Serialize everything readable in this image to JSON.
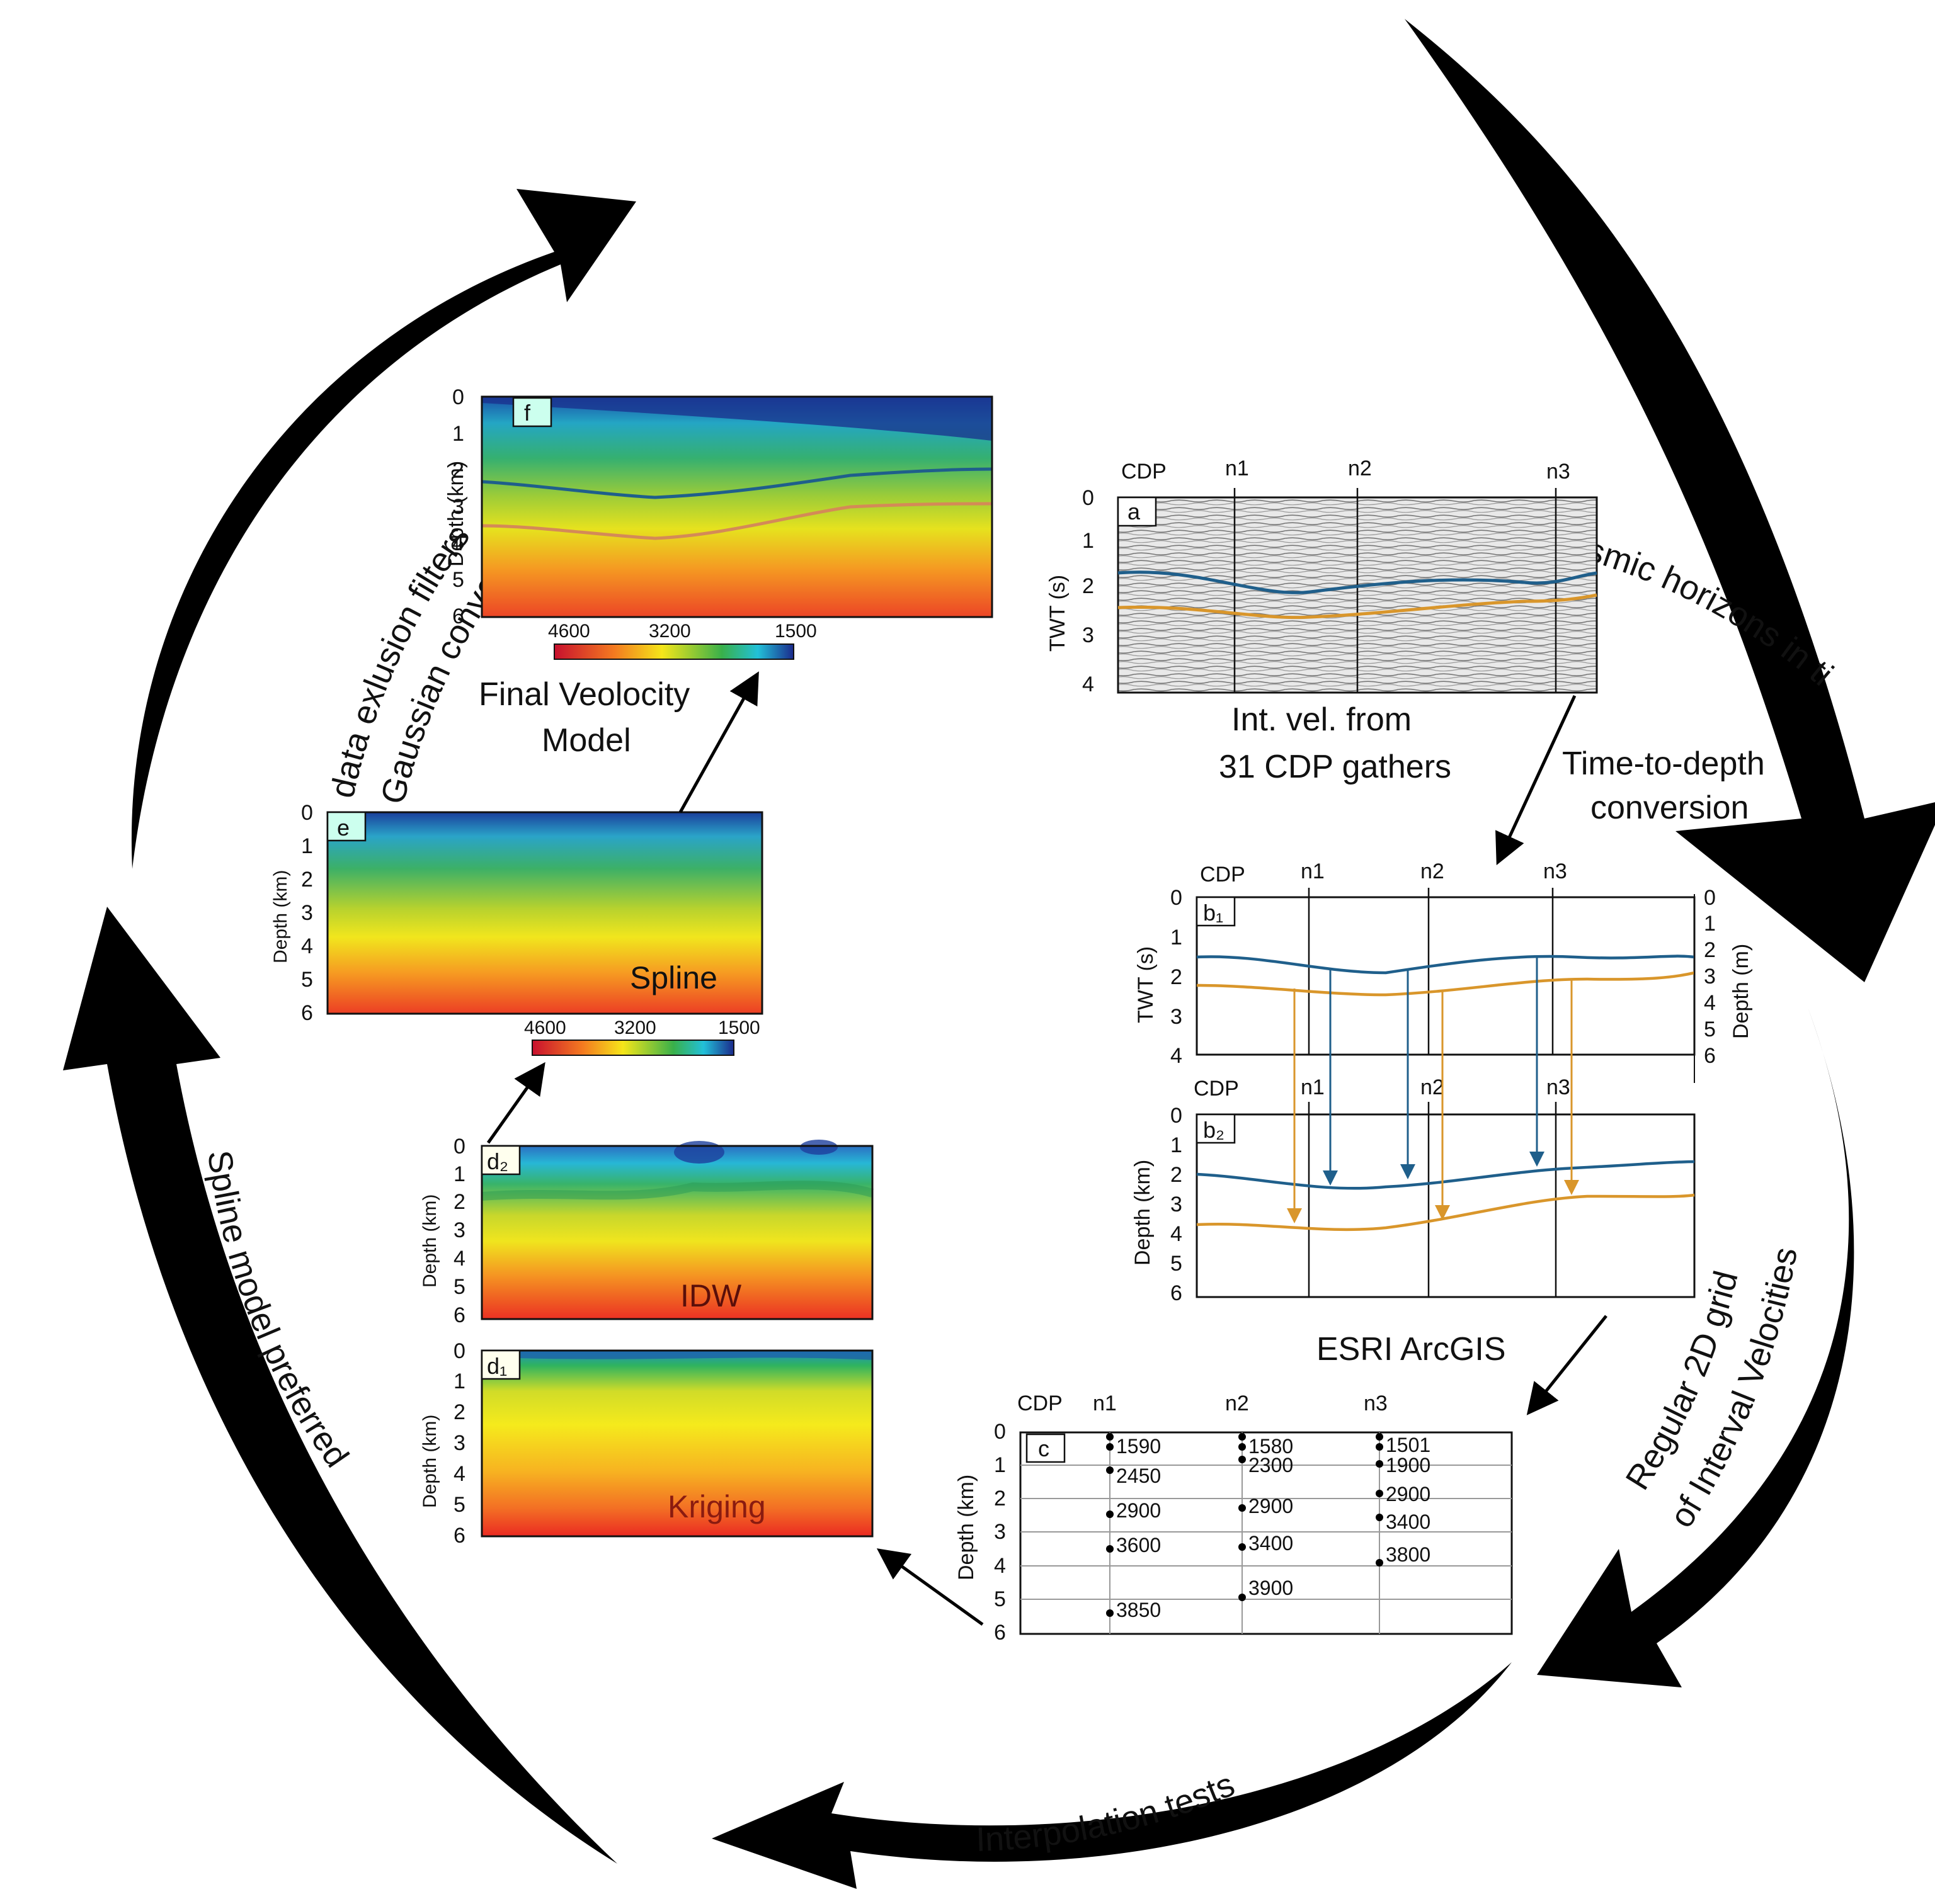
{
  "cycle": {
    "seismic_horizons": "Seismic horizons in time",
    "regular_grid_line1": "Regular 2D grid",
    "regular_grid_line2": "of Interval Velocities",
    "interpolation_tests": "Interpolation tests",
    "spline_preferred": "Spline model preferred",
    "gaussian_line1": "Gaussian convolution",
    "gaussian_line2": "data exlusion filters"
  },
  "steps": {
    "int_vel_line1": "Int. vel. from",
    "int_vel_line2": "31 CDP gathers",
    "time_depth_line1": "Time-to-depth",
    "time_depth_line2": "conversion",
    "arcgis": "ESRI ArcGIS",
    "final_line1": "Final Veolocity",
    "final_line2": "Model"
  },
  "common": {
    "cdp": "CDP",
    "n1": "n1",
    "n2": "n2",
    "n3": "n3",
    "ticks_0_4": [
      "0",
      "1",
      "2",
      "3",
      "4"
    ],
    "ticks_0_6": [
      "0",
      "1",
      "2",
      "3",
      "4",
      "5",
      "6"
    ],
    "twt_label": "TWT (s)",
    "depth_km": "Depth (km)",
    "depth_m": "Depth (m)"
  },
  "panels": {
    "a": {
      "label": "a"
    },
    "b1": {
      "label": "b₁"
    },
    "b2": {
      "label": "b₂"
    },
    "c": {
      "label": "c"
    },
    "d1": {
      "label": "d₁",
      "method": "Kriging"
    },
    "d2": {
      "label": "d₂",
      "method": "IDW"
    },
    "e": {
      "label": "e",
      "method": "Spline"
    },
    "f": {
      "label": "f"
    }
  },
  "colorbar": {
    "ticks": [
      "4600",
      "3200",
      "1500"
    ]
  },
  "velocity_table": {
    "n1": [
      "1590",
      "2450",
      "2900",
      "3600",
      "3850"
    ],
    "n2": [
      "1580",
      "2300",
      "2900",
      "3400",
      "3900"
    ],
    "n3": [
      "1501",
      "1900",
      "2900",
      "3400",
      "3800"
    ]
  },
  "colors": {
    "blue_horizon": "#1f5f8b",
    "orange_horizon": "#d9962b",
    "arrow": "#000000"
  }
}
